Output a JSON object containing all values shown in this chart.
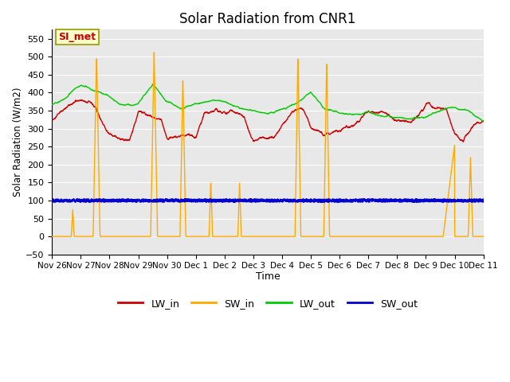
{
  "title": "Solar Radiation from CNR1",
  "xlabel": "Time",
  "ylabel": "Solar Radiation (W/m2)",
  "ylim": [
    -50,
    575
  ],
  "yticks": [
    -50,
    0,
    50,
    100,
    150,
    200,
    250,
    300,
    350,
    400,
    450,
    500,
    550
  ],
  "plot_bg": "#e8e8e8",
  "fig_bg": "#ffffff",
  "grid_color": "#ffffff",
  "annotation_text": "SI_met",
  "annotation_bg": "#ffffcc",
  "annotation_border": "#999900",
  "annotation_text_color": "#cc0000",
  "colors": {
    "LW_in": "#cc0000",
    "SW_in": "#ffaa00",
    "LW_out": "#00cc00",
    "SW_out": "#0000cc"
  },
  "linewidths": {
    "LW_in": 1.0,
    "SW_in": 1.0,
    "LW_out": 1.0,
    "SW_out": 1.5
  },
  "x_tick_labels": [
    "Nov 26",
    "Nov 27",
    "Nov 28",
    "Nov 29",
    "Nov 30",
    "Dec 1",
    "Dec 2",
    "Dec 3",
    "Dec 4",
    "Dec 5",
    "Dec 6",
    "Dec 7",
    "Dec 8",
    "Dec 9",
    "Dec 10",
    "Dec 11"
  ],
  "num_points": 2000,
  "figsize": [
    6.4,
    4.8
  ],
  "dpi": 100
}
